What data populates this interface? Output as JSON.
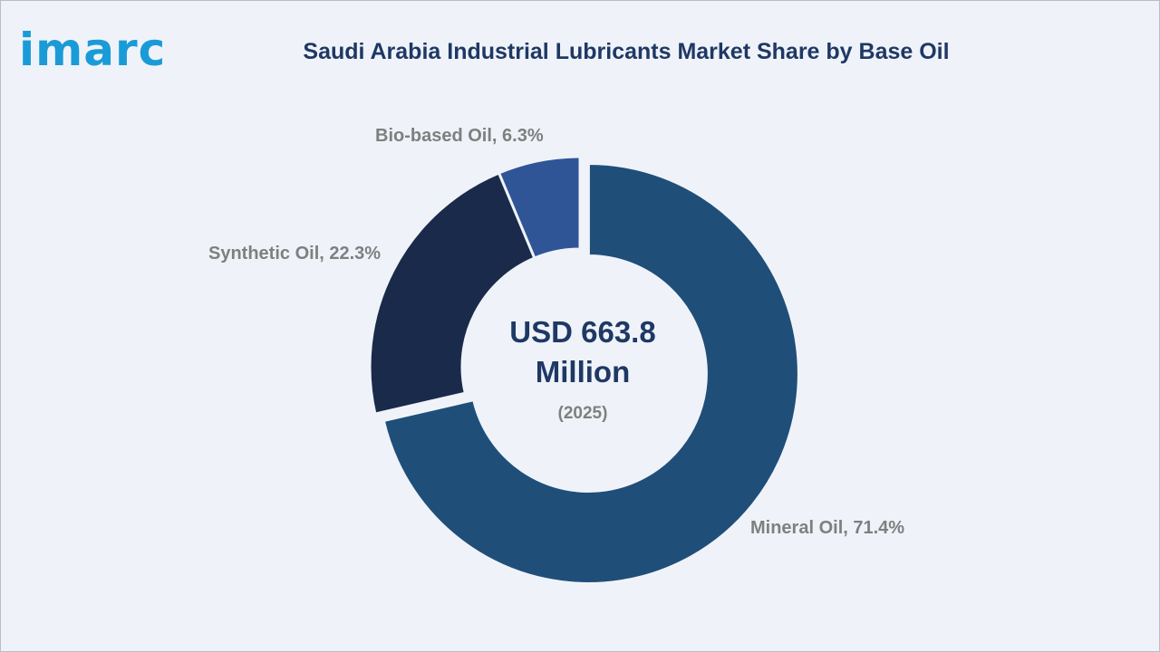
{
  "brand": {
    "logo_text": "imarc",
    "logo_color": "#1a9bd7"
  },
  "chart_data": {
    "type": "pie",
    "title": "Saudi Arabia Industrial Lubricants Market Share by Base Oil",
    "center_value_line1": "USD 663.8",
    "center_value_line2": "Million",
    "center_year": "(2025)",
    "donut": true,
    "exploded_slice": "Mineral Oil",
    "slices": [
      {
        "label": "Mineral Oil, 71.4%",
        "name": "Mineral Oil",
        "value": 71.4,
        "color": "#1f4e79"
      },
      {
        "label": "Synthetic Oil, 22.3%",
        "name": "Synthetic Oil",
        "value": 22.3,
        "color": "#1a2a4a"
      },
      {
        "label": "Bio-based Oil, 6.3%",
        "name": "Bio-based Oil",
        "value": 6.3,
        "color": "#2f5597"
      }
    ]
  }
}
